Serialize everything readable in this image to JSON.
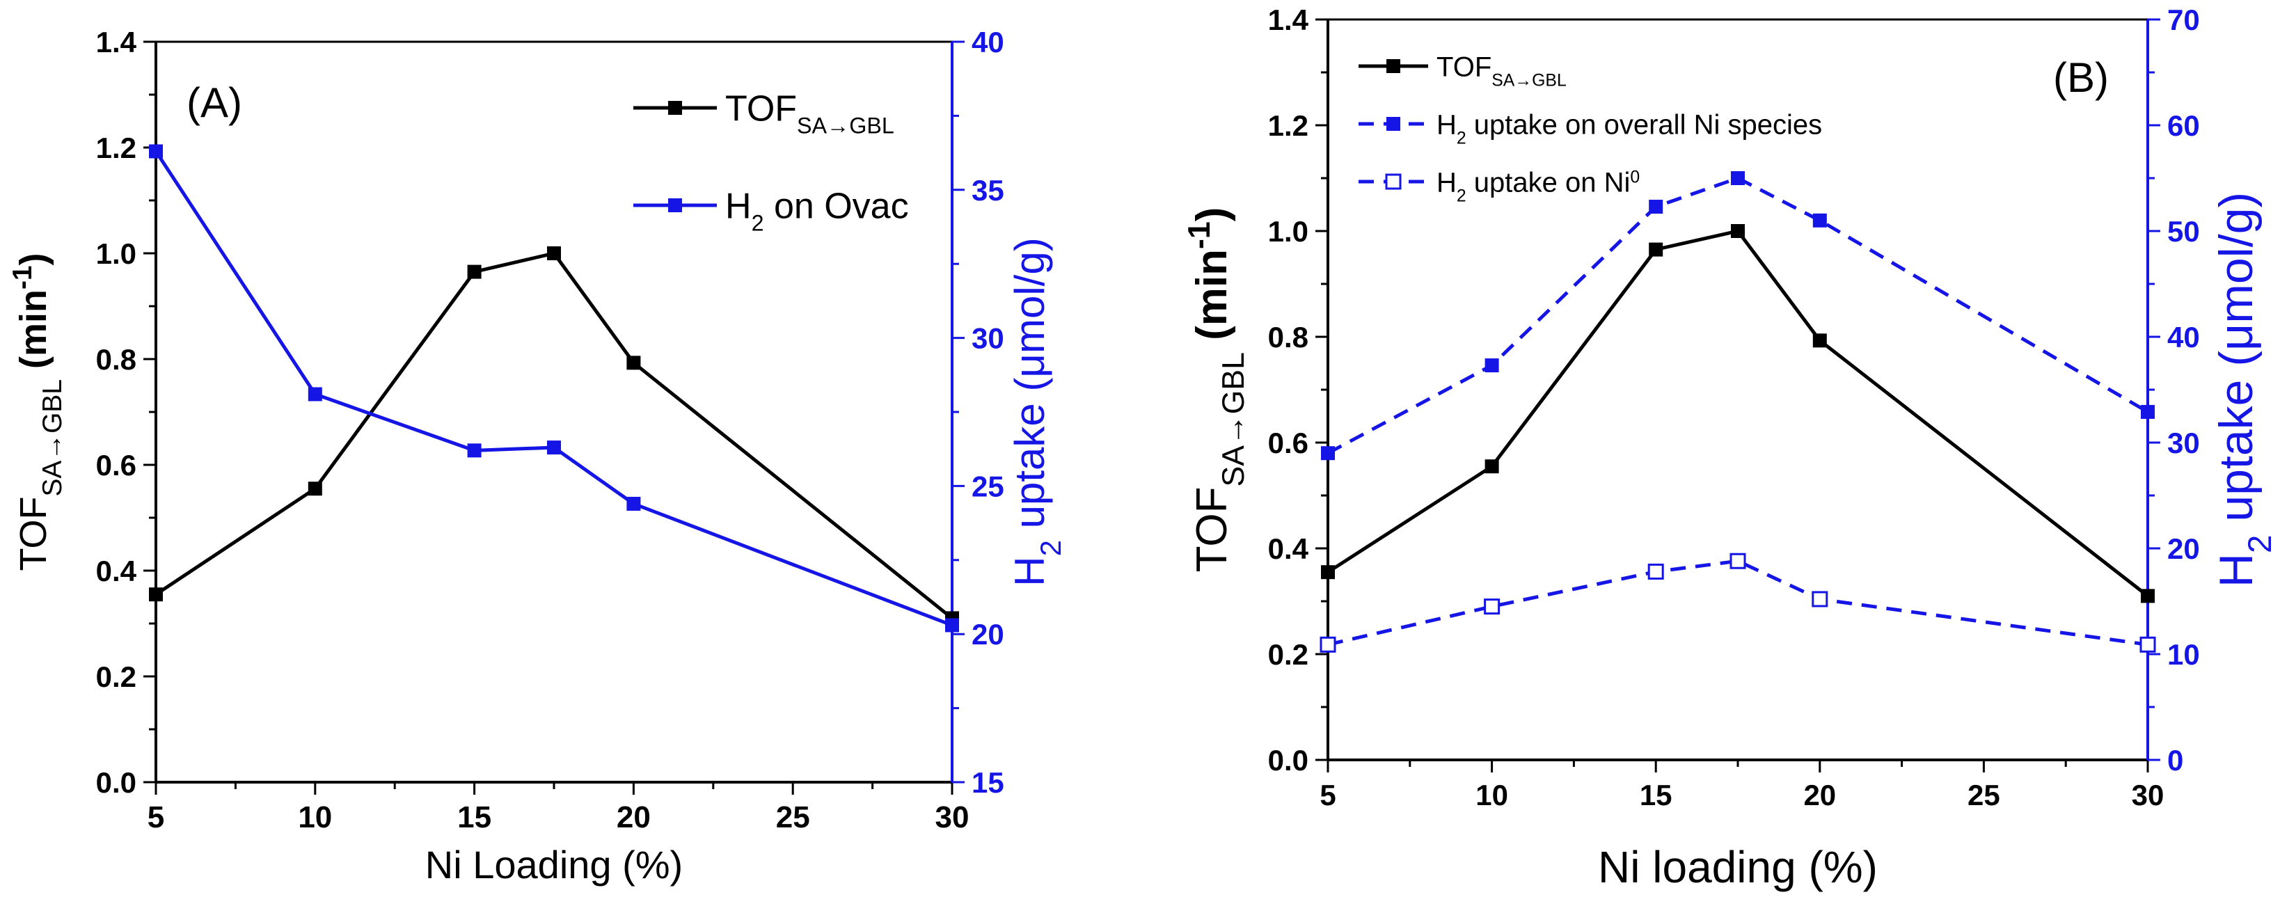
{
  "colors": {
    "tof": "#000000",
    "h2": "#1515e6",
    "axis": "#000000"
  },
  "chart_data": [
    {
      "panel_label": "(A)",
      "type": "line",
      "x": [
        5,
        10,
        15,
        17.5,
        20,
        30
      ],
      "xlim": [
        5,
        30
      ],
      "xticks": [
        "5",
        "10",
        "15",
        "20",
        "25",
        "30"
      ],
      "xlabel": "Ni Loading (%)",
      "ylim_left": [
        0.0,
        1.4
      ],
      "yticks_left": [
        "0.0",
        "0.2",
        "0.4",
        "0.6",
        "0.8",
        "1.0",
        "1.2",
        "1.4"
      ],
      "ylabel_left": {
        "main": "TOF",
        "sub": "SA→GBL",
        "unit_open": " (min",
        "unit_sup": "-1",
        "unit_close": ")"
      },
      "ylim_right": [
        15,
        40
      ],
      "yticks_right": [
        "15",
        "20",
        "25",
        "30",
        "35",
        "40"
      ],
      "ylabel_right": {
        "pre": "H",
        "sub": "2",
        "post": " uptake (μmol/g)"
      },
      "legend_position": "top-right",
      "series": [
        {
          "name": "TOF",
          "name_sub": "SA→GBL",
          "name_post": "",
          "axis": "left",
          "style": "solid",
          "marker": "filled-square",
          "color": "#000000",
          "values": [
            0.355,
            0.555,
            0.965,
            1.0,
            0.793,
            0.31
          ]
        },
        {
          "name": "H",
          "name_sub": "2",
          "name_post": " on Ovac",
          "axis": "right",
          "style": "solid",
          "marker": "filled-square",
          "color": "#1515e6",
          "values": [
            36.3,
            28.1,
            26.2,
            26.3,
            24.4,
            20.3
          ]
        }
      ]
    },
    {
      "panel_label": "(B)",
      "type": "line",
      "x": [
        5,
        10,
        15,
        17.5,
        20,
        30
      ],
      "xlim": [
        5,
        30
      ],
      "xticks": [
        "5",
        "10",
        "15",
        "20",
        "25",
        "30"
      ],
      "xlabel": "Ni loading  (%)",
      "ylim_left": [
        0.0,
        1.4
      ],
      "yticks_left": [
        "0.0",
        "0.2",
        "0.4",
        "0.6",
        "0.8",
        "1.0",
        "1.2",
        "1.4"
      ],
      "ylabel_left": {
        "main": "TOF",
        "sub": "SA→GBL",
        "unit_open": "  (min",
        "unit_sup": "-1",
        "unit_close": ")"
      },
      "ylim_right": [
        0,
        70
      ],
      "yticks_right": [
        "0",
        "10",
        "20",
        "30",
        "40",
        "50",
        "60",
        "70"
      ],
      "ylabel_right": {
        "pre": "H",
        "sub": "2",
        "post": " uptake (μmol/g)"
      },
      "legend_position": "top-left",
      "series": [
        {
          "name": "TOF",
          "name_sub": "SA→GBL",
          "name_post": "",
          "axis": "left",
          "style": "solid",
          "marker": "filled-square",
          "color": "#000000",
          "values": [
            0.355,
            0.555,
            0.965,
            1.0,
            0.793,
            0.31
          ]
        },
        {
          "name": "H",
          "name_sub": "2",
          "name_post": " uptake on overall Ni species",
          "axis": "right",
          "style": "dashed",
          "marker": "filled-square",
          "color": "#1515e6",
          "values": [
            29.0,
            37.3,
            52.3,
            55.0,
            51.0,
            32.9
          ]
        },
        {
          "name": "H",
          "name_sub": "2",
          "name_post": " uptake on Ni",
          "name_sup": "0",
          "axis": "right",
          "style": "dashed",
          "marker": "open-square",
          "color": "#1515e6",
          "values": [
            10.9,
            14.5,
            17.8,
            18.8,
            15.2,
            10.9
          ]
        }
      ]
    }
  ]
}
